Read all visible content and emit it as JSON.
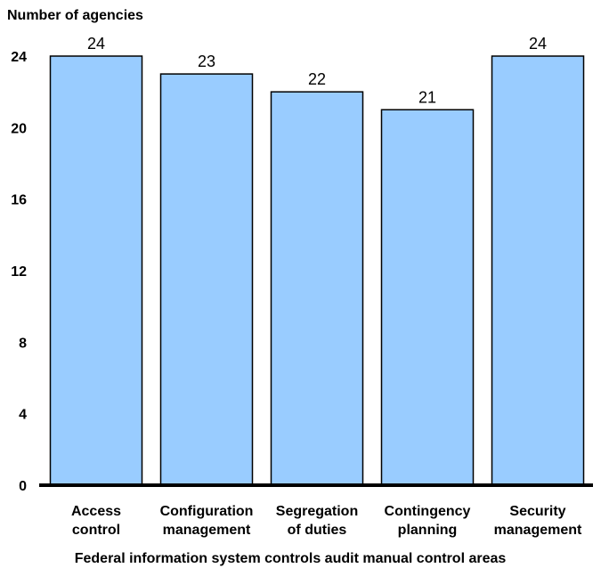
{
  "chart_data": {
    "type": "bar",
    "title": "",
    "ylabel": "Number of agencies",
    "xlabel": "Federal information system controls audit manual control areas",
    "categories": [
      [
        "Access",
        "control"
      ],
      [
        "Configuration",
        "management"
      ],
      [
        "Segregation",
        "of duties"
      ],
      [
        "Contingency",
        "planning"
      ],
      [
        "Security",
        "management"
      ]
    ],
    "values": [
      24,
      23,
      22,
      21,
      24
    ],
    "ylim": [
      0,
      24
    ],
    "yticks": [
      0,
      4,
      8,
      12,
      16,
      20,
      24
    ],
    "grid": false,
    "legend": "none",
    "colors": {
      "bar_fill": "#99CCFF",
      "bar_stroke": "#000000",
      "baseline": "#000000"
    }
  }
}
